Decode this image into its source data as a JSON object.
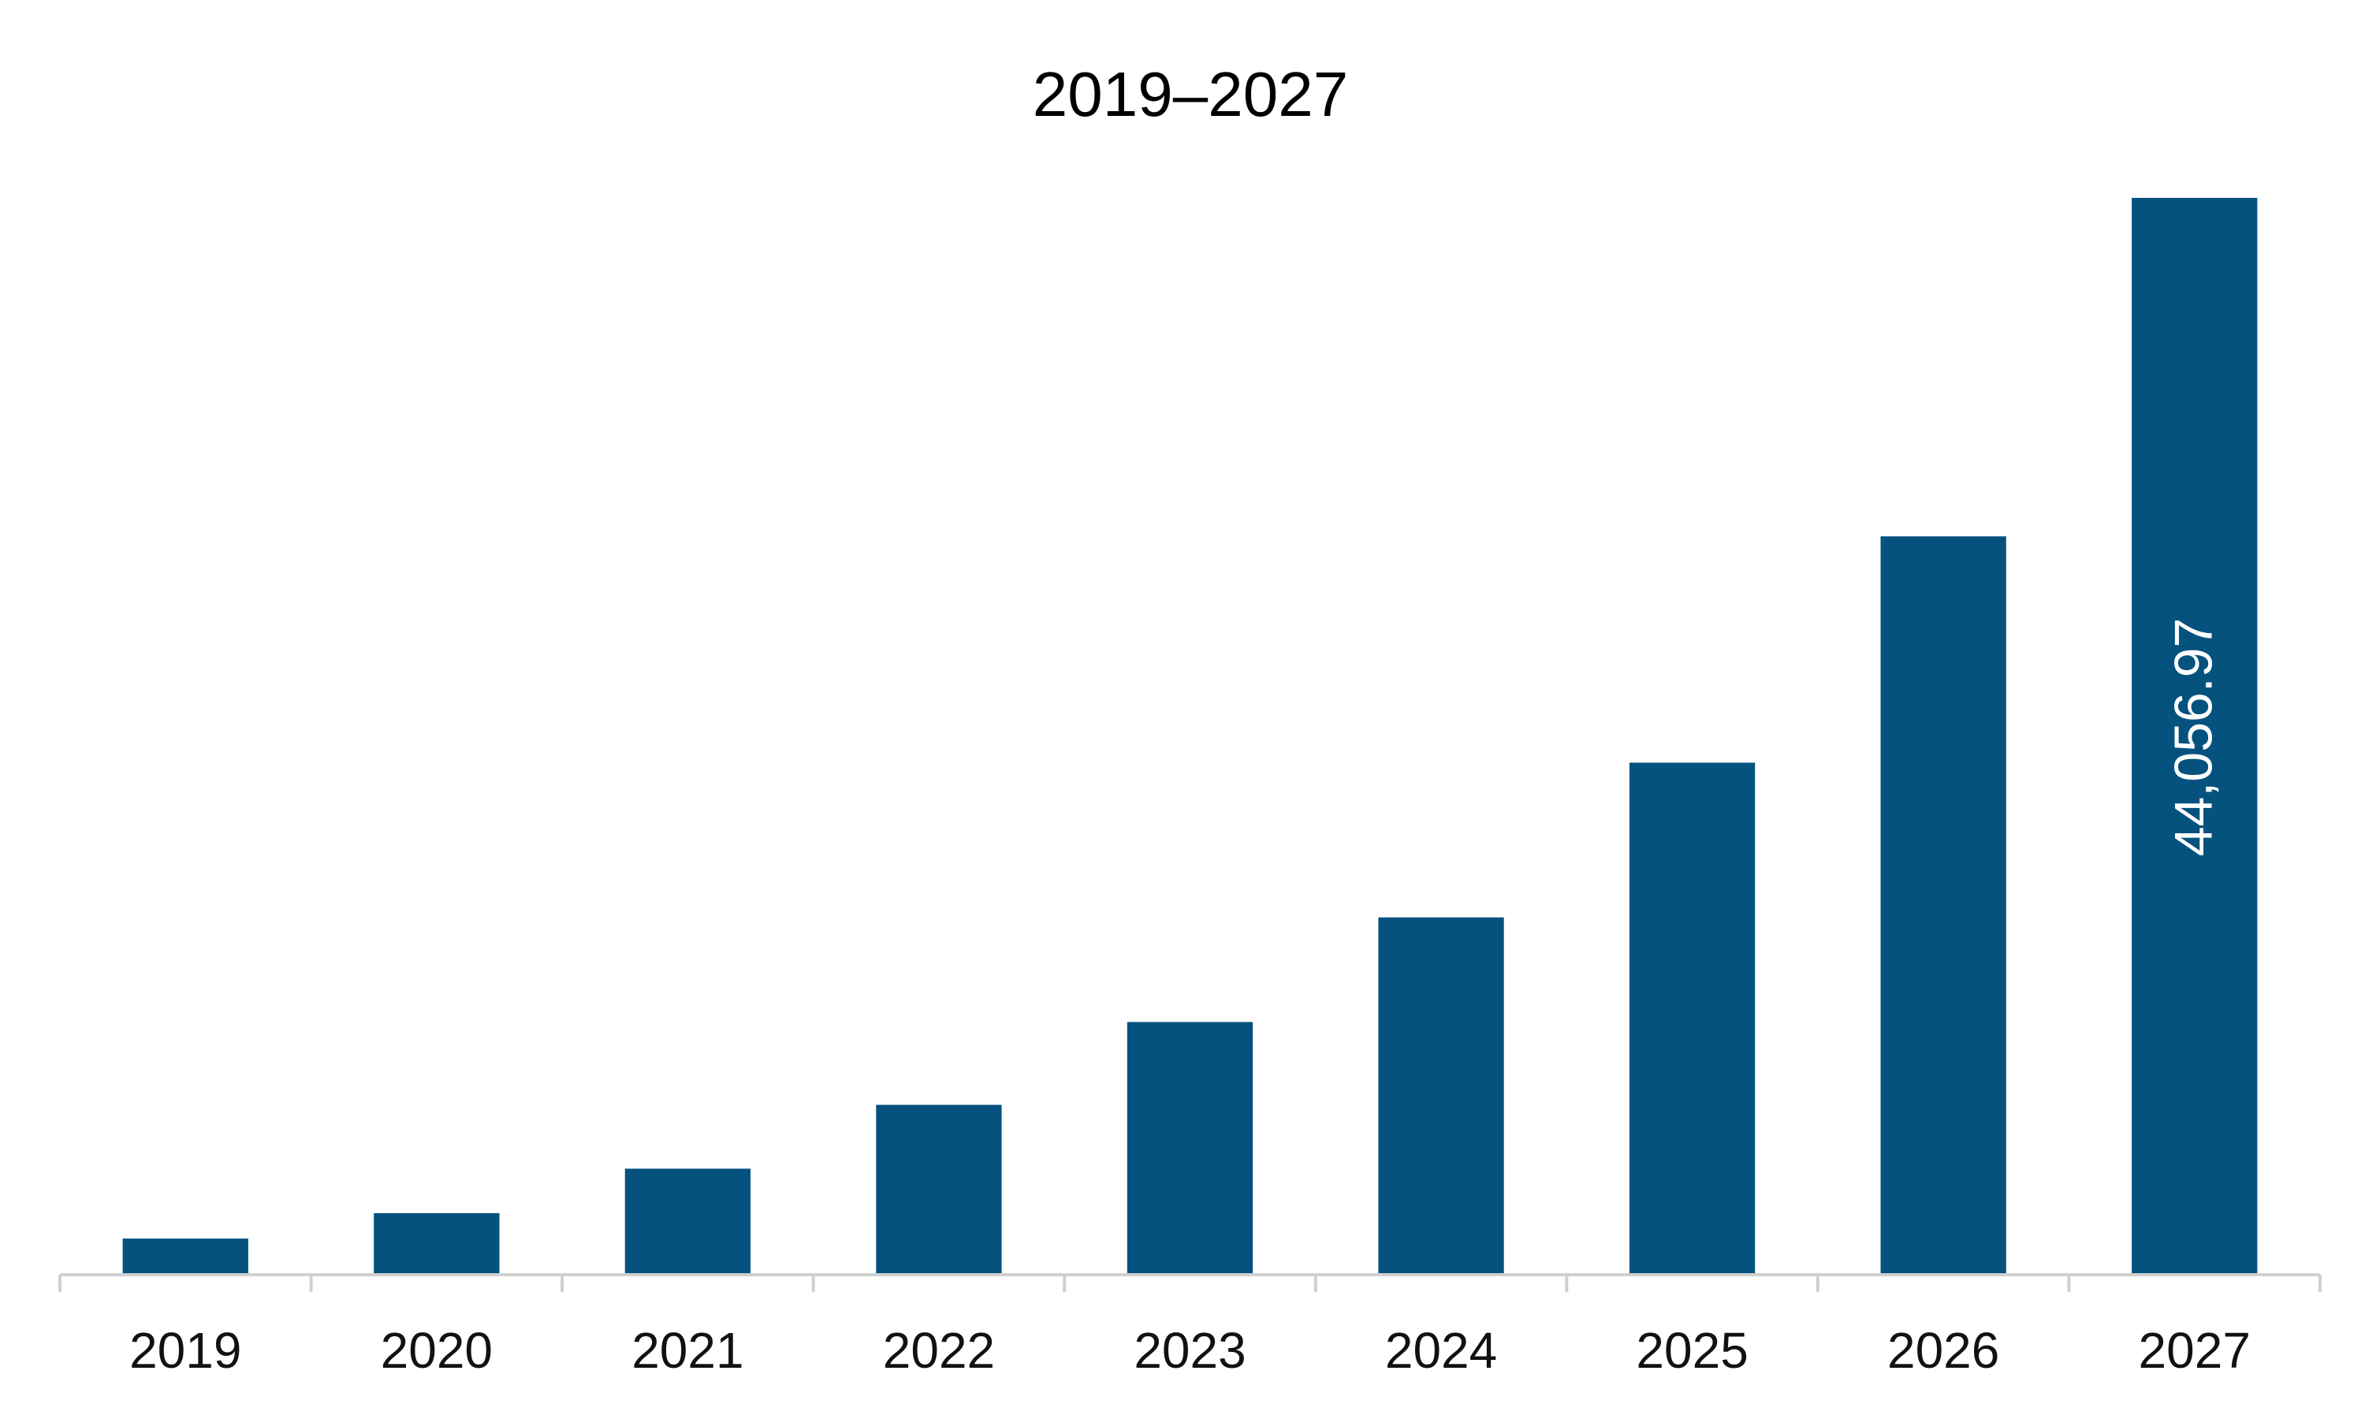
{
  "chart_data": {
    "type": "bar",
    "title": "2019–2027",
    "xlabel": "",
    "ylabel": "",
    "categories": [
      "2019",
      "2020",
      "2021",
      "2022",
      "2023",
      "2024",
      "2025",
      "2026",
      "2027"
    ],
    "values": [
      1480,
      2520,
      4340,
      6950,
      10340,
      14620,
      20950,
      30210,
      44056.97
    ],
    "data_labels": [
      {
        "category": "2027",
        "text": "44,056.97",
        "orientation": "vertical"
      }
    ],
    "ylim": [
      0,
      44056.97
    ],
    "grid": false,
    "legend": "none",
    "colors": {
      "bar": "#06527F",
      "axis": "#D0D0D0"
    }
  }
}
